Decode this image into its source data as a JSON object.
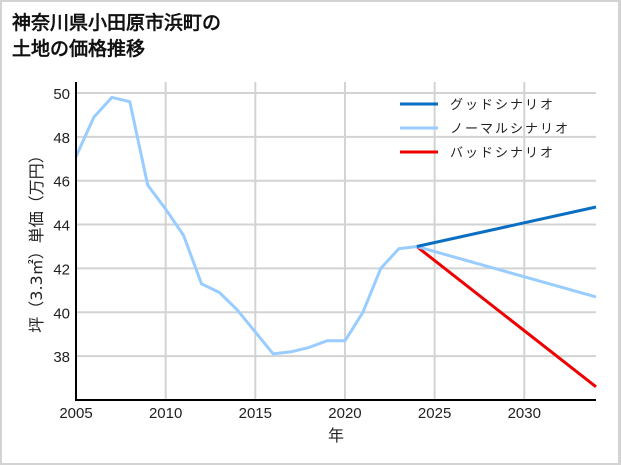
{
  "chart_data": {
    "type": "line",
    "title": "神奈川県小田原市浜町の\n土地の価格推移",
    "xlabel": "年",
    "ylabel": "坪（3.3㎡）単価（万円）",
    "xlim": [
      2005,
      2034
    ],
    "ylim": [
      36,
      50.5
    ],
    "xticks": [
      2005,
      2010,
      2015,
      2020,
      2025,
      2030
    ],
    "yticks": [
      38,
      40,
      42,
      44,
      46,
      48,
      50
    ],
    "grid": true,
    "legend_position": "upper right",
    "series": [
      {
        "name": "ノーマルシナリオ",
        "role": "history",
        "color": "#99ccff",
        "x": [
          2005,
          2006,
          2007,
          2008,
          2009,
          2010,
          2011,
          2012,
          2013,
          2014,
          2015,
          2016,
          2017,
          2018,
          2019,
          2020,
          2021,
          2022,
          2023,
          2024
        ],
        "y": [
          47.1,
          48.9,
          49.8,
          49.6,
          45.8,
          44.7,
          43.5,
          41.3,
          40.9,
          40.1,
          39.1,
          38.1,
          38.2,
          38.4,
          38.7,
          38.7,
          40.0,
          42.0,
          42.9,
          43.0
        ]
      },
      {
        "name": "グッドシナリオ",
        "color": "#0a6fc2",
        "x": [
          2024,
          2034
        ],
        "y": [
          43.0,
          44.8
        ]
      },
      {
        "name": "ノーマルシナリオ",
        "color": "#99ccff",
        "x": [
          2024,
          2034
        ],
        "y": [
          43.0,
          40.7
        ]
      },
      {
        "name": "バッドシナリオ",
        "color": "#ee0000",
        "x": [
          2024,
          2034
        ],
        "y": [
          43.0,
          36.6
        ]
      }
    ],
    "legend": [
      {
        "label": "グッドシナリオ",
        "color": "#0a6fc2"
      },
      {
        "label": "ノーマルシナリオ",
        "color": "#99ccff"
      },
      {
        "label": "バッドシナリオ",
        "color": "#ee0000"
      }
    ]
  },
  "colors": {
    "grid": "#d3d3d3",
    "axis": "#000000",
    "frame": "#d3d3d3"
  }
}
